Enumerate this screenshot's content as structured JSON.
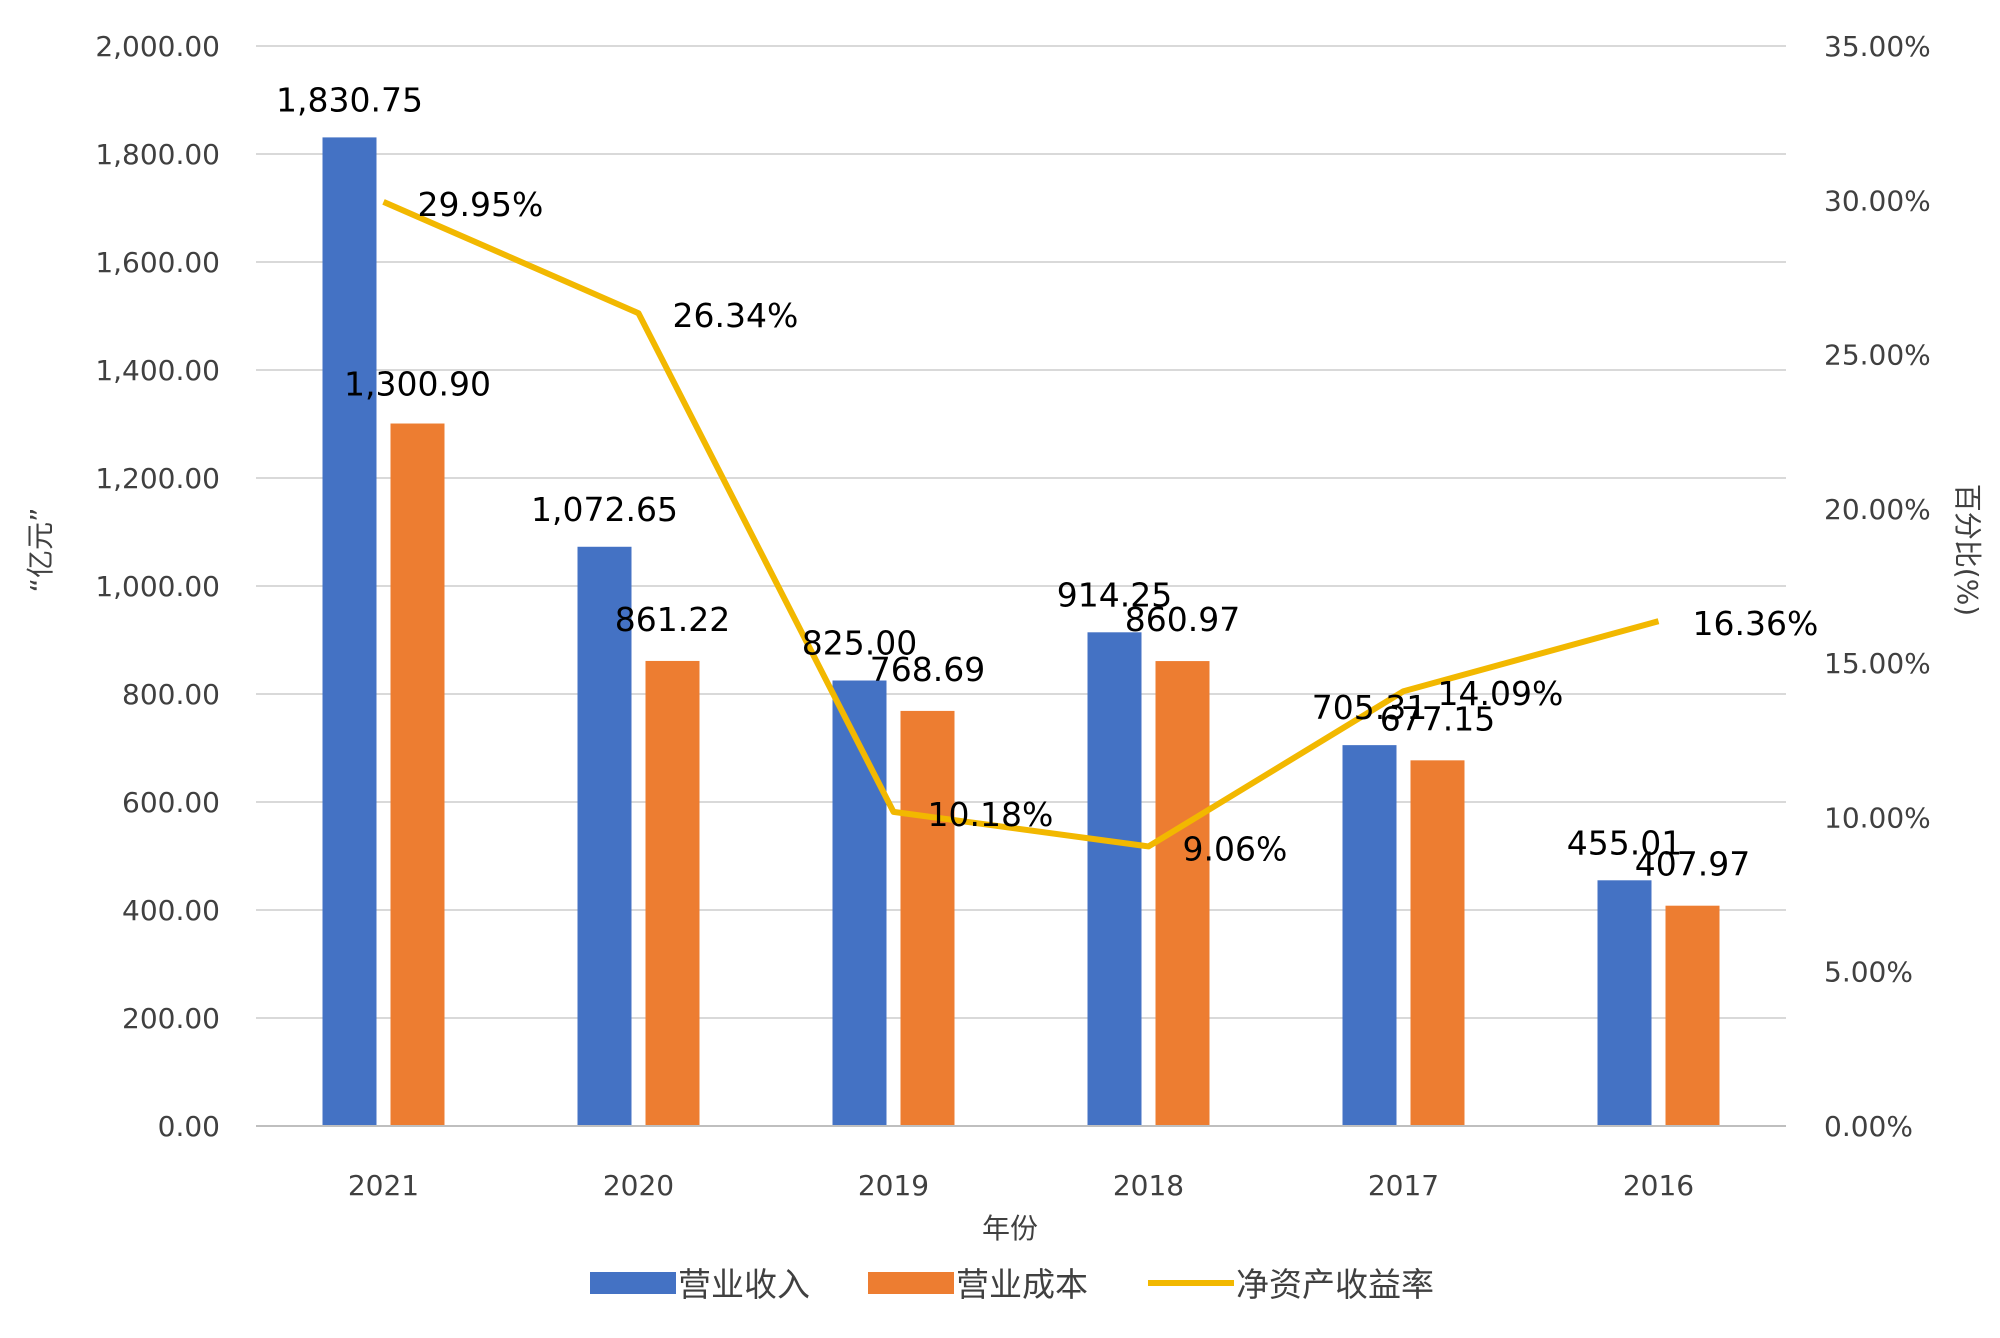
{
  "chart_data": {
    "type": "bar",
    "title": "",
    "xlabel": "年份",
    "ylabel": "“亿元”",
    "y2label": "百分比(%)",
    "categories": [
      "2021",
      "2020",
      "2019",
      "2018",
      "2017",
      "2016"
    ],
    "ylim": [
      0,
      2000
    ],
    "y2lim": [
      0,
      35
    ],
    "yticks": [
      "0.00",
      "200.00",
      "400.00",
      "600.00",
      "800.00",
      "1,000.00",
      "1,200.00",
      "1,400.00",
      "1,600.00",
      "1,800.00",
      "2,000.00"
    ],
    "y2ticks": [
      "0.00%",
      "5.00%",
      "10.00%",
      "15.00%",
      "20.00%",
      "25.00%",
      "30.00%",
      "35.00%"
    ],
    "grid": true,
    "legend_position": "bottom",
    "series": [
      {
        "name": "营业收入",
        "type": "bar",
        "axis": "left",
        "color": "#4472C4",
        "values": [
          1830.75,
          1072.65,
          825.0,
          914.25,
          705.31,
          455.01
        ],
        "labels": [
          "1,830.75",
          "1,072.65",
          "825.00",
          "914.25",
          "705.31",
          "455.01"
        ]
      },
      {
        "name": "营业成本",
        "type": "bar",
        "axis": "left",
        "color": "#ED7D31",
        "values": [
          1300.9,
          861.22,
          768.69,
          860.97,
          677.15,
          407.97
        ],
        "labels": [
          "1,300.90",
          "861.22",
          "768.69",
          "860.97",
          "677.15",
          "407.97"
        ]
      },
      {
        "name": "净资产收益率",
        "type": "line",
        "axis": "right",
        "color": "#F2B800",
        "values": [
          29.95,
          26.34,
          10.18,
          9.06,
          14.09,
          16.36
        ],
        "labels": [
          "29.95%",
          "26.34%",
          "10.18%",
          "9.06%",
          "14.09%",
          "16.36%"
        ]
      }
    ]
  }
}
